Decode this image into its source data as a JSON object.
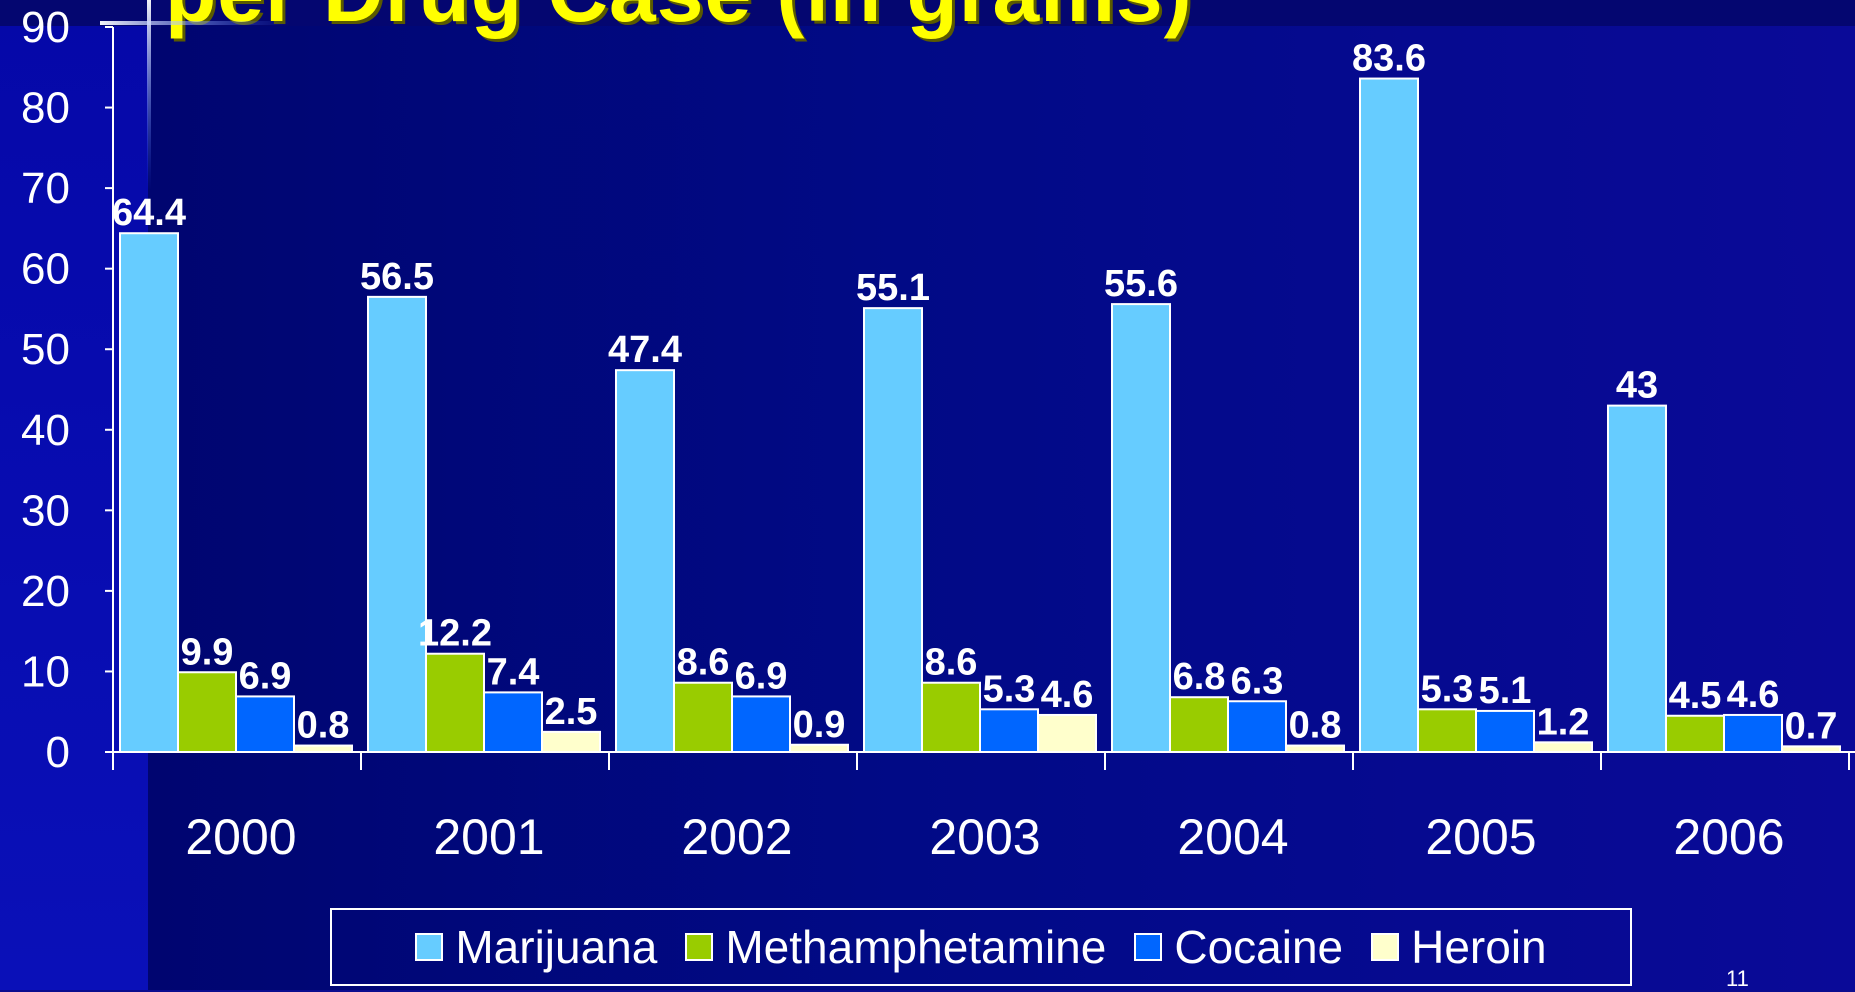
{
  "slide": {
    "title_fragment": "per Drug Case (in grams)",
    "slide_number": "11"
  },
  "colors": {
    "marijuana": "#66ccff",
    "methamphetamine": "#99cc00",
    "cocaine": "#0066ff",
    "heroin": "#ffffcc",
    "title": "#ffff00"
  },
  "chart_data": {
    "type": "bar",
    "categories": [
      "2000",
      "2001",
      "2002",
      "2003",
      "2004",
      "2005",
      "2006"
    ],
    "series": [
      {
        "name": "Marijuana",
        "color": "#66ccff",
        "values": [
          64.4,
          56.5,
          47.4,
          55.1,
          55.6,
          83.6,
          43
        ]
      },
      {
        "name": "Methamphetamine",
        "color": "#99cc00",
        "values": [
          9.9,
          12.2,
          8.6,
          8.6,
          6.8,
          5.3,
          4.5
        ]
      },
      {
        "name": "Cocaine",
        "color": "#0066ff",
        "values": [
          6.9,
          7.4,
          6.9,
          5.3,
          6.3,
          5.1,
          4.6
        ]
      },
      {
        "name": "Heroin",
        "color": "#ffffcc",
        "values": [
          0.8,
          2.5,
          0.9,
          4.6,
          0.8,
          1.2,
          0.7
        ]
      }
    ],
    "ylim": [
      0,
      90
    ],
    "yticks": [
      0,
      10,
      20,
      30,
      40,
      50,
      60,
      70,
      80,
      90
    ],
    "data_labels": true,
    "grid": false,
    "legend_position": "bottom"
  }
}
